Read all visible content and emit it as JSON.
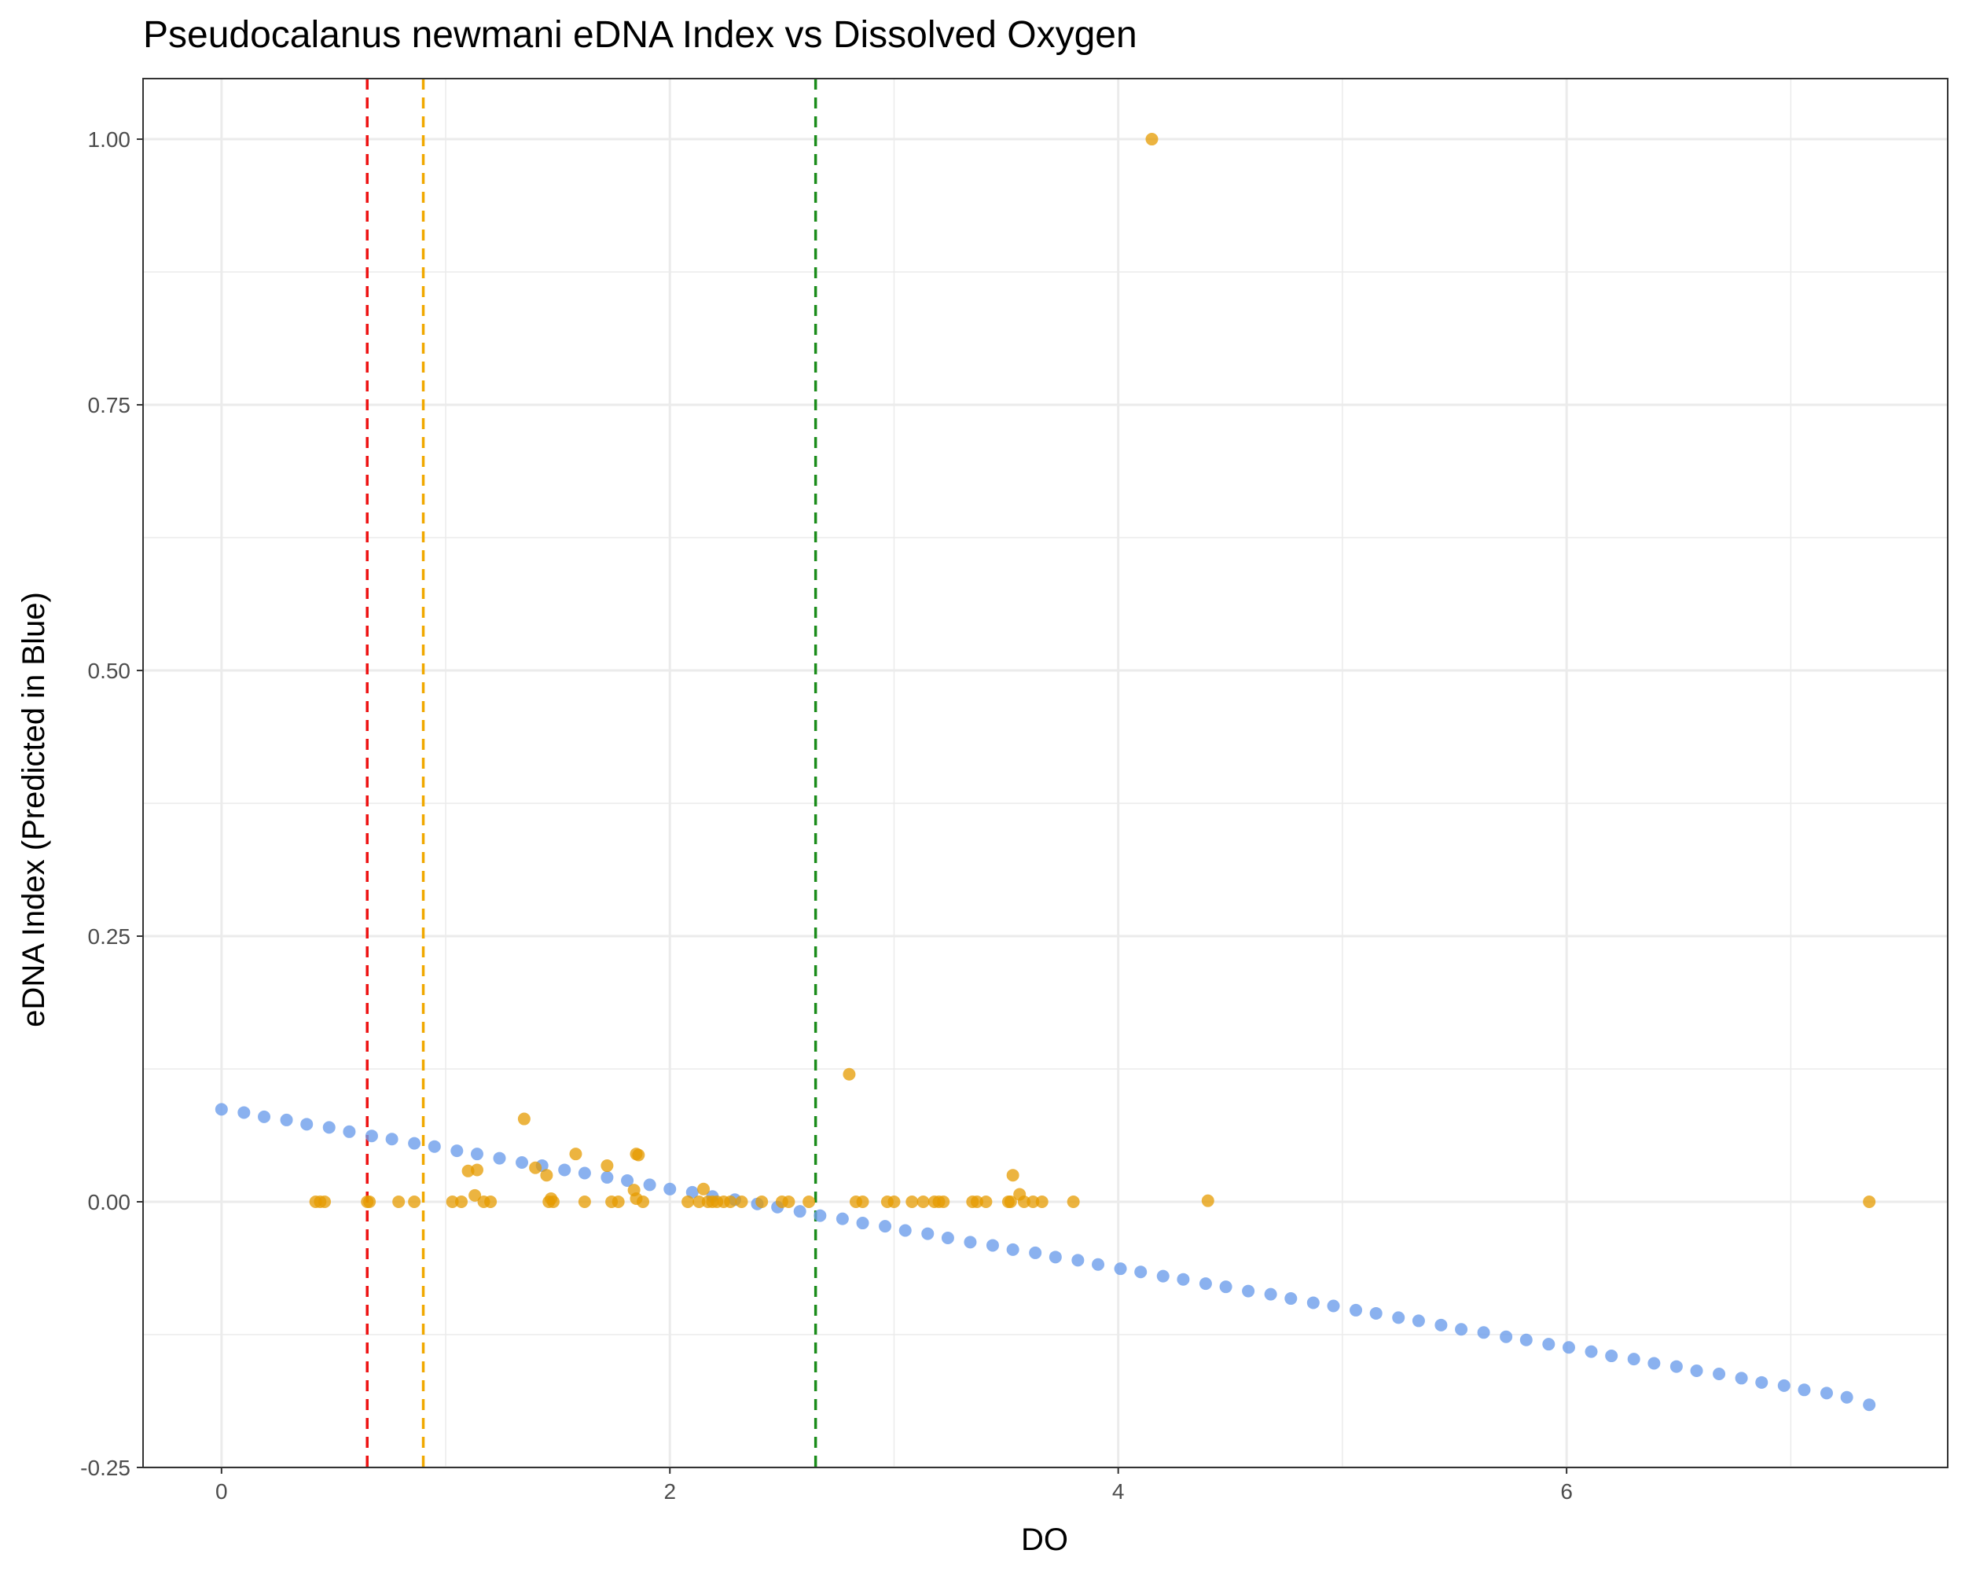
{
  "chart_data": {
    "type": "scatter",
    "title": "Pseudocalanus newmani eDNA Index vs Dissolved Oxygen",
    "xlabel": "DO",
    "ylabel": "eDNA Index (Predicted in Blue)",
    "xlim": [
      -0.35,
      7.7
    ],
    "ylim": [
      -0.25,
      1.057
    ],
    "x_ticks": [
      0,
      2,
      4,
      6
    ],
    "x_tick_labels": [
      "0",
      "2",
      "4",
      "6"
    ],
    "x_minor_ticks": [
      1,
      3,
      5,
      7
    ],
    "y_ticks": [
      -0.25,
      0,
      0.25,
      0.5,
      0.75,
      1
    ],
    "y_tick_labels": [
      "-0.25",
      "0.00",
      "0.25",
      "0.50",
      "0.75",
      "1.00"
    ],
    "y_minor_ticks": [
      -0.125,
      0.125,
      0.375,
      0.625,
      0.875
    ],
    "grid": true,
    "legend": "none",
    "colors": {
      "predicted": "#6d9eeb",
      "observed": "#e69b00",
      "vline_red": "#ee1111",
      "vline_orange": "#f0a800",
      "vline_green": "#1a8c1a",
      "panel_border": "#333333",
      "grid": "#ebebeb"
    },
    "reference_lines": [
      {
        "x": 0.65,
        "color": "#ee1111",
        "style": "dashed"
      },
      {
        "x": 0.9,
        "color": "#f0a800",
        "style": "dashed"
      },
      {
        "x": 2.65,
        "color": "#1a8c1a",
        "style": "dashed"
      }
    ],
    "series": [
      {
        "role": "predicted",
        "color": "#6d9eeb",
        "x": [
          0,
          0.1,
          0.19,
          0.29,
          0.38,
          0.48,
          0.57,
          0.67,
          0.76,
          0.86,
          0.95,
          1.05,
          1.14,
          1.24,
          1.34,
          1.43,
          1.53,
          1.62,
          1.72,
          1.81,
          1.91,
          2.0,
          2.1,
          2.19,
          2.29,
          2.39,
          2.48,
          2.58,
          2.67,
          2.77,
          2.86,
          2.96,
          3.05,
          3.15,
          3.24,
          3.34,
          3.44,
          3.53,
          3.63,
          3.72,
          3.82,
          3.91,
          4.01,
          4.1,
          4.2,
          4.29,
          4.39,
          4.48,
          4.58,
          4.68,
          4.77,
          4.87,
          4.96,
          5.06,
          5.15,
          5.25,
          5.34,
          5.44,
          5.53,
          5.63,
          5.73,
          5.82,
          5.92,
          6.01,
          6.11,
          6.2,
          6.3,
          6.39,
          6.49,
          6.58,
          6.68,
          6.78,
          6.87,
          6.97,
          7.06,
          7.16,
          7.25,
          7.35
        ],
        "y": [
          0.087,
          0.084,
          0.08,
          0.077,
          0.073,
          0.07,
          0.066,
          0.062,
          0.059,
          0.055,
          0.052,
          0.048,
          0.045,
          0.041,
          0.037,
          0.034,
          0.03,
          0.027,
          0.023,
          0.02,
          0.016,
          0.012,
          0.009,
          0.005,
          0.002,
          -0.002,
          -0.005,
          -0.009,
          -0.013,
          -0.016,
          -0.02,
          -0.023,
          -0.027,
          -0.03,
          -0.034,
          -0.038,
          -0.041,
          -0.045,
          -0.048,
          -0.052,
          -0.055,
          -0.059,
          -0.063,
          -0.066,
          -0.07,
          -0.073,
          -0.077,
          -0.08,
          -0.084,
          -0.087,
          -0.091,
          -0.095,
          -0.098,
          -0.102,
          -0.105,
          -0.109,
          -0.112,
          -0.116,
          -0.12,
          -0.123,
          -0.127,
          -0.13,
          -0.134,
          -0.137,
          -0.141,
          -0.145,
          -0.148,
          -0.152,
          -0.155,
          -0.159,
          -0.162,
          -0.166,
          -0.17,
          -0.173,
          -0.177,
          -0.18,
          -0.184,
          -0.191
        ]
      },
      {
        "role": "observed",
        "color": "#e69b00",
        "x": [
          4.15,
          2.8,
          1.35,
          1.58,
          1.85,
          1.86,
          1.72,
          1.1,
          1.14,
          1.45,
          1.47,
          1.4,
          2.15,
          1.84,
          3.53,
          3.56,
          1.13,
          1.85,
          0.42,
          0.44,
          0.46,
          0.65,
          0.66,
          0.79,
          0.86,
          1.03,
          1.07,
          1.17,
          1.2,
          1.46,
          1.48,
          1.62,
          1.74,
          1.77,
          1.88,
          2.08,
          2.13,
          2.17,
          2.19,
          2.21,
          2.24,
          2.27,
          2.32,
          2.41,
          2.5,
          2.53,
          2.62,
          2.83,
          2.86,
          2.97,
          3.0,
          3.08,
          3.13,
          3.18,
          3.2,
          3.22,
          3.35,
          3.37,
          3.41,
          3.51,
          3.52,
          3.58,
          3.62,
          3.66,
          3.8,
          4.4,
          7.35
        ],
        "y": [
          1.0,
          0.12,
          0.078,
          0.045,
          0.045,
          0.044,
          0.034,
          0.029,
          0.03,
          0.025,
          0.003,
          0.032,
          0.012,
          0.011,
          0.025,
          0.007,
          0.006,
          0.003,
          0.0,
          0.0,
          0.0,
          0.0,
          0.0,
          0.0,
          0.0,
          0.0,
          0.0,
          0.0,
          0.0,
          0.0,
          0.0,
          0.0,
          0.0,
          0.0,
          0.0,
          0.0,
          0.0,
          0.0,
          0.0,
          0.0,
          0.0,
          0.0,
          0.0,
          0.0,
          0.0,
          0.0,
          0.0,
          0.0,
          0.0,
          0.0,
          0.0,
          0.0,
          0.0,
          0.0,
          0.0,
          0.0,
          0.0,
          0.0,
          0.0,
          0.0,
          0.0,
          0.0,
          0.0,
          0.0,
          0.0,
          0.001,
          0.0
        ]
      }
    ]
  }
}
